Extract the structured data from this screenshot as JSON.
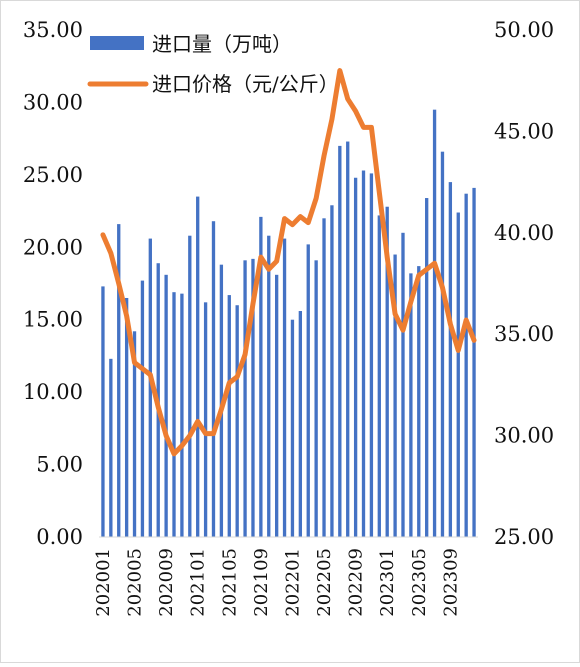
{
  "chart_data": {
    "type": "bar+line",
    "x": [
      "202001",
      "202002",
      "202003",
      "202004",
      "202005",
      "202006",
      "202007",
      "202008",
      "202009",
      "202010",
      "202011",
      "202012",
      "202101",
      "202102",
      "202103",
      "202104",
      "202105",
      "202106",
      "202107",
      "202108",
      "202109",
      "202110",
      "202111",
      "202112",
      "202201",
      "202202",
      "202203",
      "202204",
      "202205",
      "202206",
      "202207",
      "202208",
      "202209",
      "202210",
      "202211",
      "202212",
      "202301",
      "202302",
      "202303",
      "202304",
      "202305",
      "202306",
      "202307",
      "202308",
      "202309",
      "202310",
      "202311",
      "202312"
    ],
    "x_tick_labels": [
      "202001",
      "202005",
      "202009",
      "202101",
      "202105",
      "202109",
      "202201",
      "202205",
      "202209",
      "202301",
      "202305",
      "202309"
    ],
    "series": [
      {
        "name": "进口量（万吨）",
        "type": "bar",
        "axis": "left",
        "color": "#4472c4",
        "values": [
          17.3,
          12.3,
          21.6,
          16.5,
          14.2,
          17.7,
          20.6,
          18.9,
          18.1,
          16.9,
          16.8,
          20.8,
          23.5,
          16.2,
          21.8,
          18.8,
          16.7,
          16.0,
          19.1,
          19.2,
          22.1,
          20.8,
          18.1,
          20.6,
          15.0,
          15.6,
          20.2,
          19.1,
          22.0,
          22.9,
          27.0,
          27.3,
          24.8,
          25.3,
          25.1,
          22.2,
          22.8,
          19.5,
          21.0,
          18.2,
          18.7,
          23.4,
          29.5,
          26.6,
          24.5,
          22.4,
          23.7,
          24.1
        ]
      },
      {
        "name": "进口价格（元/公斤）",
        "type": "line",
        "axis": "right",
        "color": "#ed7d31",
        "values": [
          39.9,
          39.0,
          37.5,
          35.9,
          33.6,
          33.3,
          33.0,
          31.4,
          30.0,
          29.1,
          29.5,
          30.0,
          30.7,
          30.1,
          30.1,
          31.3,
          32.6,
          32.9,
          34.0,
          36.5,
          38.8,
          38.2,
          38.6,
          40.7,
          40.4,
          40.8,
          40.5,
          41.7,
          43.8,
          45.6,
          48.0,
          46.6,
          46.0,
          45.2,
          45.2,
          42.0,
          38.8,
          36.0,
          35.2,
          36.6,
          37.9,
          38.2,
          38.5,
          37.3,
          35.5,
          34.2,
          35.7,
          34.7
        ]
      }
    ],
    "y_left": {
      "min": 0,
      "max": 35,
      "ticks": [
        "0.00",
        "5.00",
        "10.00",
        "15.00",
        "20.00",
        "25.00",
        "30.00",
        "35.00"
      ]
    },
    "y_right": {
      "min": 25,
      "max": 50,
      "ticks": [
        "25.00",
        "30.00",
        "35.00",
        "40.00",
        "45.00",
        "50.00"
      ]
    },
    "legend": [
      "进口量（万吨）",
      "进口价格（元/公斤）"
    ],
    "legend_position": "top-left",
    "grid": false
  }
}
